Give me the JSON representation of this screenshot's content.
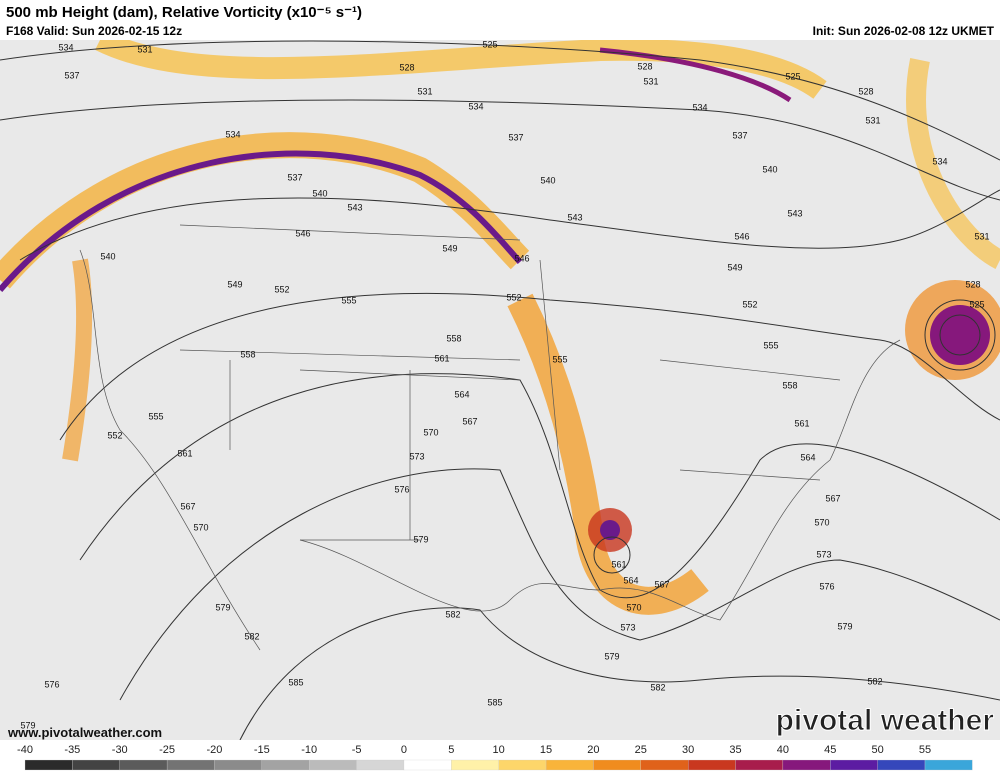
{
  "header": {
    "title": "500 mb Height (dam), Relative Vorticity (x10⁻⁵ s⁻¹)",
    "valid": "F168 Valid: Sun 2026-02-15 12z",
    "init": "Init: Sun 2026-02-08 12z UKMET"
  },
  "map": {
    "contour_labels": [
      534,
      531,
      525,
      528,
      531,
      534,
      537,
      528,
      531,
      534,
      525,
      528,
      531,
      537,
      540,
      534,
      531,
      528,
      525,
      537,
      534,
      537,
      540,
      543,
      546,
      549,
      546,
      540,
      543,
      546,
      549,
      552,
      555,
      558,
      561,
      564,
      567,
      570,
      573,
      576,
      579,
      582,
      543,
      540,
      549,
      552,
      555,
      558,
      561,
      564,
      567,
      570,
      573,
      576,
      579,
      582,
      585,
      585,
      552,
      555,
      558,
      555,
      552,
      561,
      567,
      570,
      579,
      582,
      576,
      579,
      561,
      564,
      567,
      570,
      573,
      579,
      582
    ],
    "website": "www.pivotalweather.com",
    "watermark": "pivotal weather"
  },
  "colorbar": {
    "ticks": [
      -40,
      -35,
      -30,
      -25,
      -20,
      -15,
      -10,
      -5,
      0,
      5,
      10,
      15,
      20,
      25,
      30,
      35,
      40,
      45,
      50,
      55
    ],
    "colors": [
      "#2b2b2b",
      "#434343",
      "#5b5b5b",
      "#737373",
      "#8b8b8b",
      "#a3a3a3",
      "#bbbbbb",
      "#d6d6d6",
      "#ffffff",
      "#fff1a8",
      "#fdd66a",
      "#f9b43a",
      "#f08c1e",
      "#e0621a",
      "#c9381f",
      "#a81d4c",
      "#86187c",
      "#5c1ca2",
      "#3547bb",
      "#3aa6da"
    ]
  }
}
